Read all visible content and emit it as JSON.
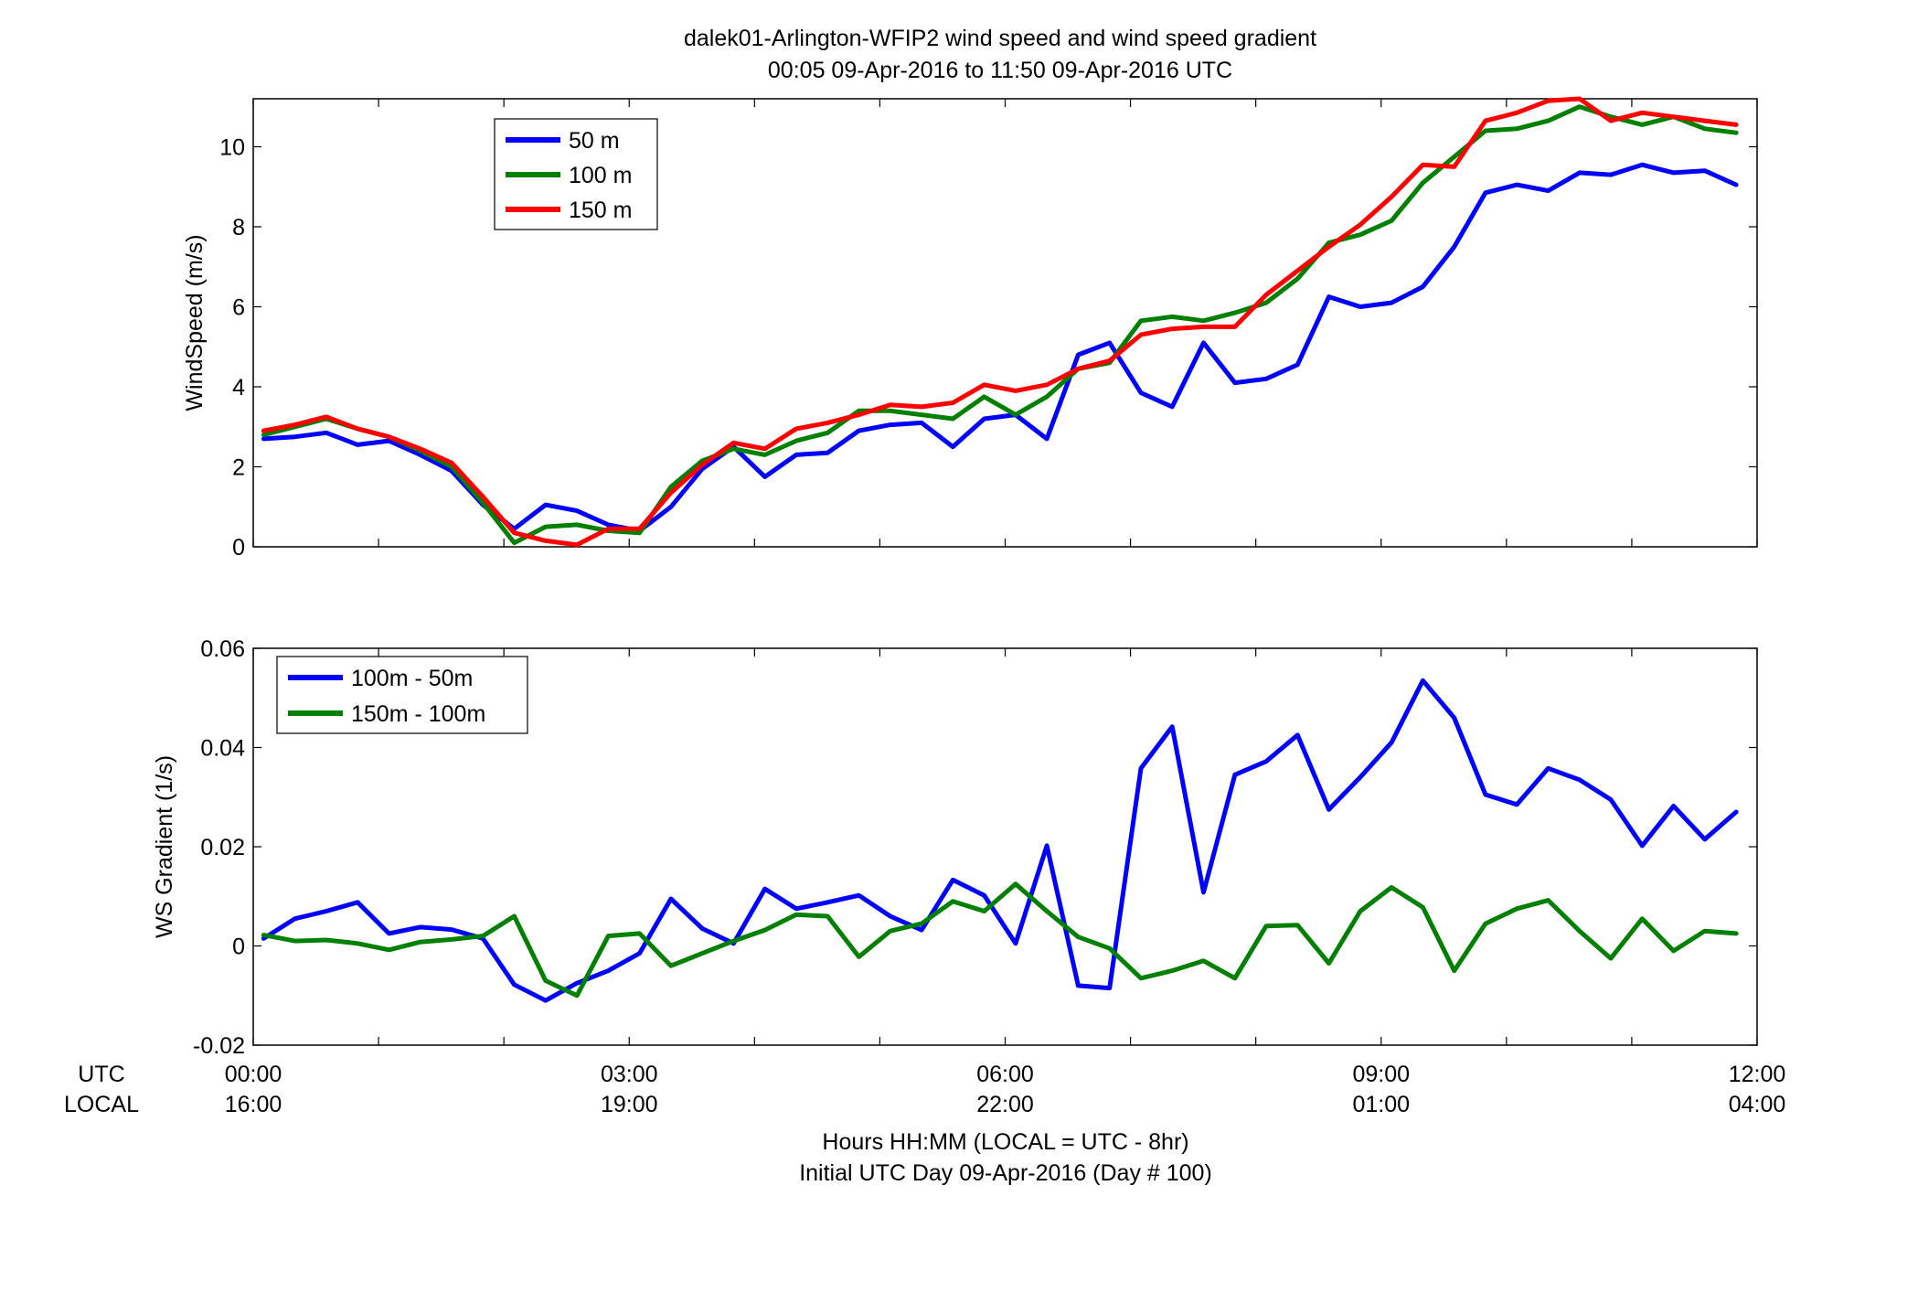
{
  "figure": {
    "title_line1": "dalek01-Arlington-WFIP2  wind speed and wind speed gradient",
    "title_line2": "00:05 09-Apr-2016 to 11:50 09-Apr-2016  UTC",
    "utc_row_label": "UTC",
    "local_row_label": "LOCAL",
    "xlabel_line1": "Hours HH:MM  (LOCAL = UTC - 8hr)",
    "xlabel_line2": "Initial UTC Day 09-Apr-2016 (Day # 100)",
    "x_ticks_utc": [
      "00:00",
      "03:00",
      "06:00",
      "09:00",
      "12:00"
    ],
    "x_ticks_local": [
      "16:00",
      "19:00",
      "22:00",
      "01:00",
      "04:00"
    ],
    "colors": {
      "blue": "#0000ff",
      "green": "#008000",
      "red": "#ff0000",
      "axis": "#000000"
    }
  },
  "chart_data": [
    {
      "type": "line",
      "ylabel": "WindSpeed (m/s)",
      "xlim": [
        0,
        12
      ],
      "ylim": [
        0,
        11.2
      ],
      "yticks": [
        0,
        2,
        4,
        6,
        8,
        10
      ],
      "legend_position": "top-left",
      "grid": false,
      "x": [
        0.083,
        0.333,
        0.583,
        0.833,
        1.083,
        1.333,
        1.583,
        1.833,
        2.083,
        2.333,
        2.583,
        2.833,
        3.083,
        3.333,
        3.583,
        3.833,
        4.083,
        4.333,
        4.583,
        4.833,
        5.083,
        5.333,
        5.583,
        5.833,
        6.083,
        6.333,
        6.583,
        6.833,
        7.083,
        7.333,
        7.583,
        7.833,
        8.083,
        8.333,
        8.583,
        8.833,
        9.083,
        9.333,
        9.583,
        9.833,
        10.083,
        10.333,
        10.583,
        10.833,
        11.083,
        11.333,
        11.583,
        11.833
      ],
      "series": [
        {
          "name": "50 m",
          "color": "#0000ff",
          "values": [
            2.7,
            2.75,
            2.85,
            2.55,
            2.65,
            2.3,
            1.9,
            1.05,
            0.45,
            1.05,
            0.9,
            0.55,
            0.4,
            1.0,
            1.95,
            2.5,
            1.75,
            2.3,
            2.35,
            2.9,
            3.05,
            3.1,
            2.5,
            3.2,
            3.3,
            2.7,
            4.8,
            5.1,
            3.85,
            3.5,
            5.1,
            4.1,
            4.2,
            4.55,
            6.25,
            6.0,
            6.1,
            6.5,
            7.5,
            8.85,
            9.05,
            8.9,
            9.35,
            9.3,
            9.55,
            9.35,
            9.4,
            9.05
          ]
        },
        {
          "name": "100 m",
          "color": "#008000",
          "values": [
            2.8,
            3.0,
            3.2,
            2.95,
            2.75,
            2.4,
            2.0,
            1.1,
            0.1,
            0.5,
            0.55,
            0.4,
            0.35,
            1.5,
            2.15,
            2.45,
            2.3,
            2.65,
            2.85,
            3.4,
            3.4,
            3.3,
            3.2,
            3.75,
            3.3,
            3.75,
            4.45,
            4.6,
            5.65,
            5.75,
            5.65,
            5.85,
            6.1,
            6.7,
            7.6,
            7.8,
            8.15,
            9.1,
            9.75,
            10.4,
            10.45,
            10.65,
            11.0,
            10.75,
            10.55,
            10.75,
            10.45,
            10.35
          ]
        },
        {
          "name": "150 m",
          "color": "#ff0000",
          "values": [
            2.9,
            3.05,
            3.25,
            2.95,
            2.75,
            2.45,
            2.1,
            1.25,
            0.35,
            0.15,
            0.05,
            0.45,
            0.45,
            1.35,
            2.05,
            2.6,
            2.45,
            2.95,
            3.1,
            3.3,
            3.55,
            3.5,
            3.6,
            4.05,
            3.9,
            4.05,
            4.45,
            4.65,
            5.3,
            5.45,
            5.5,
            5.5,
            6.3,
            6.9,
            7.5,
            8.05,
            8.75,
            9.55,
            9.5,
            10.65,
            10.85,
            11.15,
            11.2,
            10.65,
            10.85,
            10.75,
            10.65,
            10.55
          ]
        }
      ]
    },
    {
      "type": "line",
      "ylabel": "WS Gradient (1/s)",
      "xlim": [
        0,
        12
      ],
      "ylim": [
        -0.02,
        0.06
      ],
      "yticks": [
        -0.02,
        0,
        0.02,
        0.04,
        0.06
      ],
      "ytick_labels": [
        "-0.02",
        "0",
        "0.02",
        "0.04",
        "0.06"
      ],
      "legend_position": "top-left",
      "grid": false,
      "x": [
        0.083,
        0.333,
        0.583,
        0.833,
        1.083,
        1.333,
        1.583,
        1.833,
        2.083,
        2.333,
        2.583,
        2.833,
        3.083,
        3.333,
        3.583,
        3.833,
        4.083,
        4.333,
        4.583,
        4.833,
        5.083,
        5.333,
        5.583,
        5.833,
        6.083,
        6.333,
        6.583,
        6.833,
        7.083,
        7.333,
        7.583,
        7.833,
        8.083,
        8.333,
        8.583,
        8.833,
        9.083,
        9.333,
        9.583,
        9.833,
        10.083,
        10.333,
        10.583,
        10.833,
        11.083,
        11.333,
        11.583,
        11.833
      ],
      "series": [
        {
          "name": "100m - 50m",
          "color": "#0000ff",
          "values": [
            0.0015,
            0.0055,
            0.007,
            0.0088,
            0.0025,
            0.0038,
            0.0033,
            0.0015,
            -0.0078,
            -0.011,
            -0.0075,
            -0.005,
            -0.0015,
            0.0095,
            0.0035,
            0.0005,
            0.0115,
            0.0075,
            0.0088,
            0.0102,
            0.006,
            0.0032,
            0.0133,
            0.0102,
            0.0005,
            0.0202,
            -0.008,
            -0.0085,
            0.0358,
            0.0442,
            0.0108,
            0.0345,
            0.0372,
            0.0425,
            0.0275,
            0.034,
            0.041,
            0.0535,
            0.046,
            0.0305,
            0.0285,
            0.0358,
            0.0335,
            0.0295,
            0.0202,
            0.0282,
            0.0215,
            0.027
          ]
        },
        {
          "name": "150m - 100m",
          "color": "#008000",
          "values": [
            0.0022,
            0.001,
            0.0012,
            0.0005,
            -0.0008,
            0.0008,
            0.0013,
            0.002,
            0.006,
            -0.007,
            -0.01,
            0.002,
            0.0025,
            -0.004,
            -0.0015,
            0.001,
            0.0032,
            0.0063,
            0.006,
            -0.0022,
            0.003,
            0.0045,
            0.009,
            0.007,
            0.0125,
            0.007,
            0.0018,
            -0.0005,
            -0.0065,
            -0.005,
            -0.003,
            -0.0065,
            0.004,
            0.0042,
            -0.0035,
            0.007,
            0.0118,
            0.0078,
            -0.005,
            0.0045,
            0.0075,
            0.0092,
            0.003,
            -0.0025,
            0.0055,
            -0.001,
            0.003,
            0.0025
          ]
        }
      ]
    }
  ]
}
